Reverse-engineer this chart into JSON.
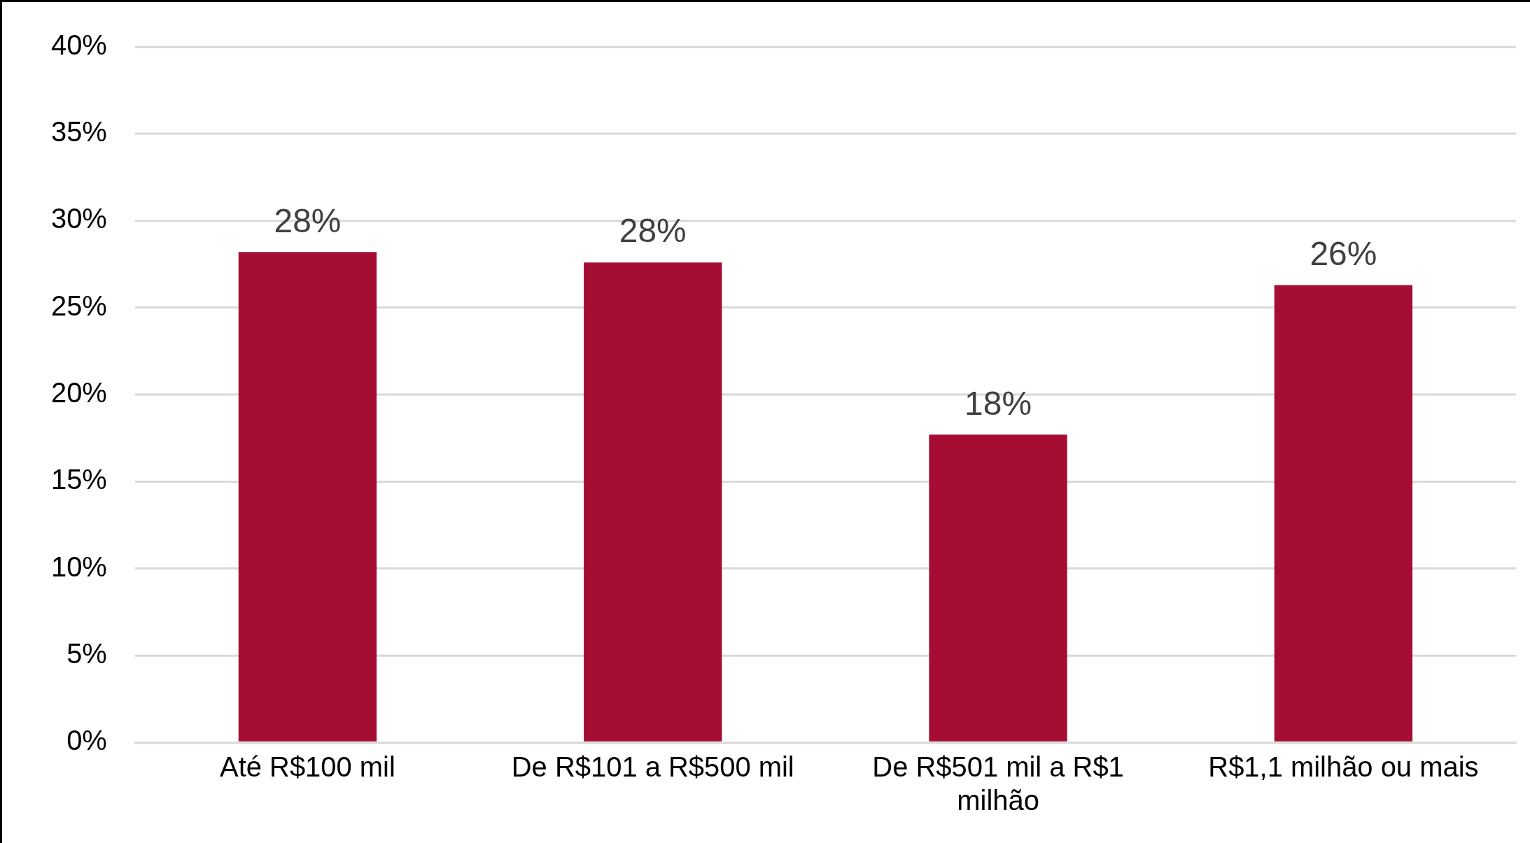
{
  "chart_data": {
    "type": "bar",
    "categories": [
      "Até R$100 mil",
      "De R$101 a R$500 mil",
      "De R$501 mil a R$1 milhão",
      "R$1,1 milhão ou mais"
    ],
    "values": [
      28.2,
      27.6,
      17.7,
      26.3
    ],
    "value_labels": [
      "28%",
      "28%",
      "18%",
      "26%"
    ],
    "color": "#a50d33",
    "ylim": [
      0,
      40
    ],
    "yticks": [
      {
        "value": 0,
        "label": "0%"
      },
      {
        "value": 5,
        "label": "5%"
      },
      {
        "value": 10,
        "label": "10%"
      },
      {
        "value": 15,
        "label": "15%"
      },
      {
        "value": 20,
        "label": "20%"
      },
      {
        "value": 25,
        "label": "25%"
      },
      {
        "value": 30,
        "label": "30%"
      },
      {
        "value": 35,
        "label": "35%"
      },
      {
        "value": 40,
        "label": "40%"
      }
    ],
    "grid": "y",
    "legend": false
  }
}
